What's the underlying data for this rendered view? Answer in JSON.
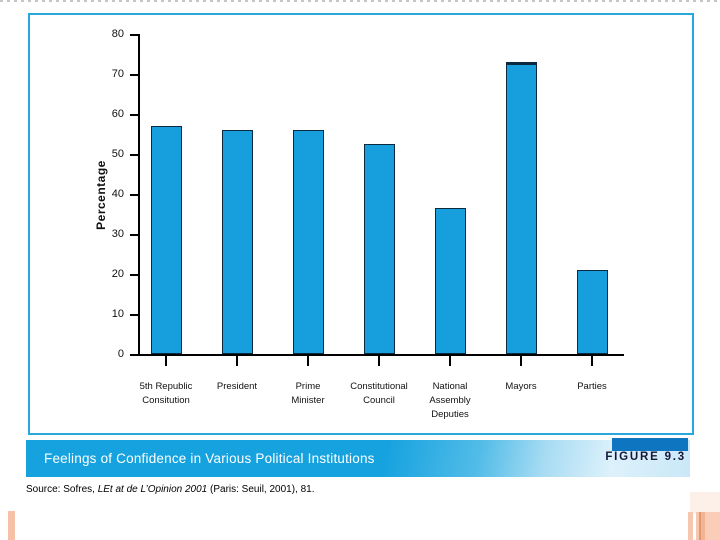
{
  "figure": {
    "caption": "Feelings of Confidence in Various Political Institutions",
    "figure_label": "FIGURE 9.3",
    "source_prefix": "Source: Sofres, ",
    "source_title_italic": "LEt at de L’Opinion 2001",
    "source_suffix": " (Paris: Seuil, 2001), 81.",
    "colors": {
      "chart_box_border": "#2aa6de",
      "caption_bar_blue": "#16a2df",
      "caption_bar_light": "#c9e8f7",
      "figure_block_blue": "#0e76c0",
      "caption_text": "#ffffff",
      "figure_label_text": "#16163a",
      "decor_salmon_light": "#f7c6af",
      "decor_salmon_dark": "#e2996f"
    }
  },
  "chart_data": {
    "type": "bar",
    "title": "",
    "xlabel": "",
    "ylabel": "Percentage",
    "ylim": [
      0,
      80
    ],
    "yticks": [
      0,
      10,
      20,
      30,
      40,
      50,
      60,
      70,
      80
    ],
    "grid": false,
    "legend": false,
    "bar_color": "#169fdc",
    "bar_border_color": "#0c2940",
    "categories": [
      "5th Republic Consitution",
      "President",
      "Prime Minister",
      "Constitutional Council",
      "National Assembly Deputies",
      "Mayors",
      "Parties"
    ],
    "category_lines": [
      [
        "5th Republic",
        "Consitution"
      ],
      [
        "President"
      ],
      [
        "Prime",
        "Minister"
      ],
      [
        "Constitutional",
        "Council"
      ],
      [
        "National",
        "Assembly",
        "Deputies"
      ],
      [
        "Mayors"
      ],
      [
        "Parties"
      ]
    ],
    "values": [
      57,
      56,
      56,
      52.5,
      36.5,
      73,
      21
    ]
  }
}
